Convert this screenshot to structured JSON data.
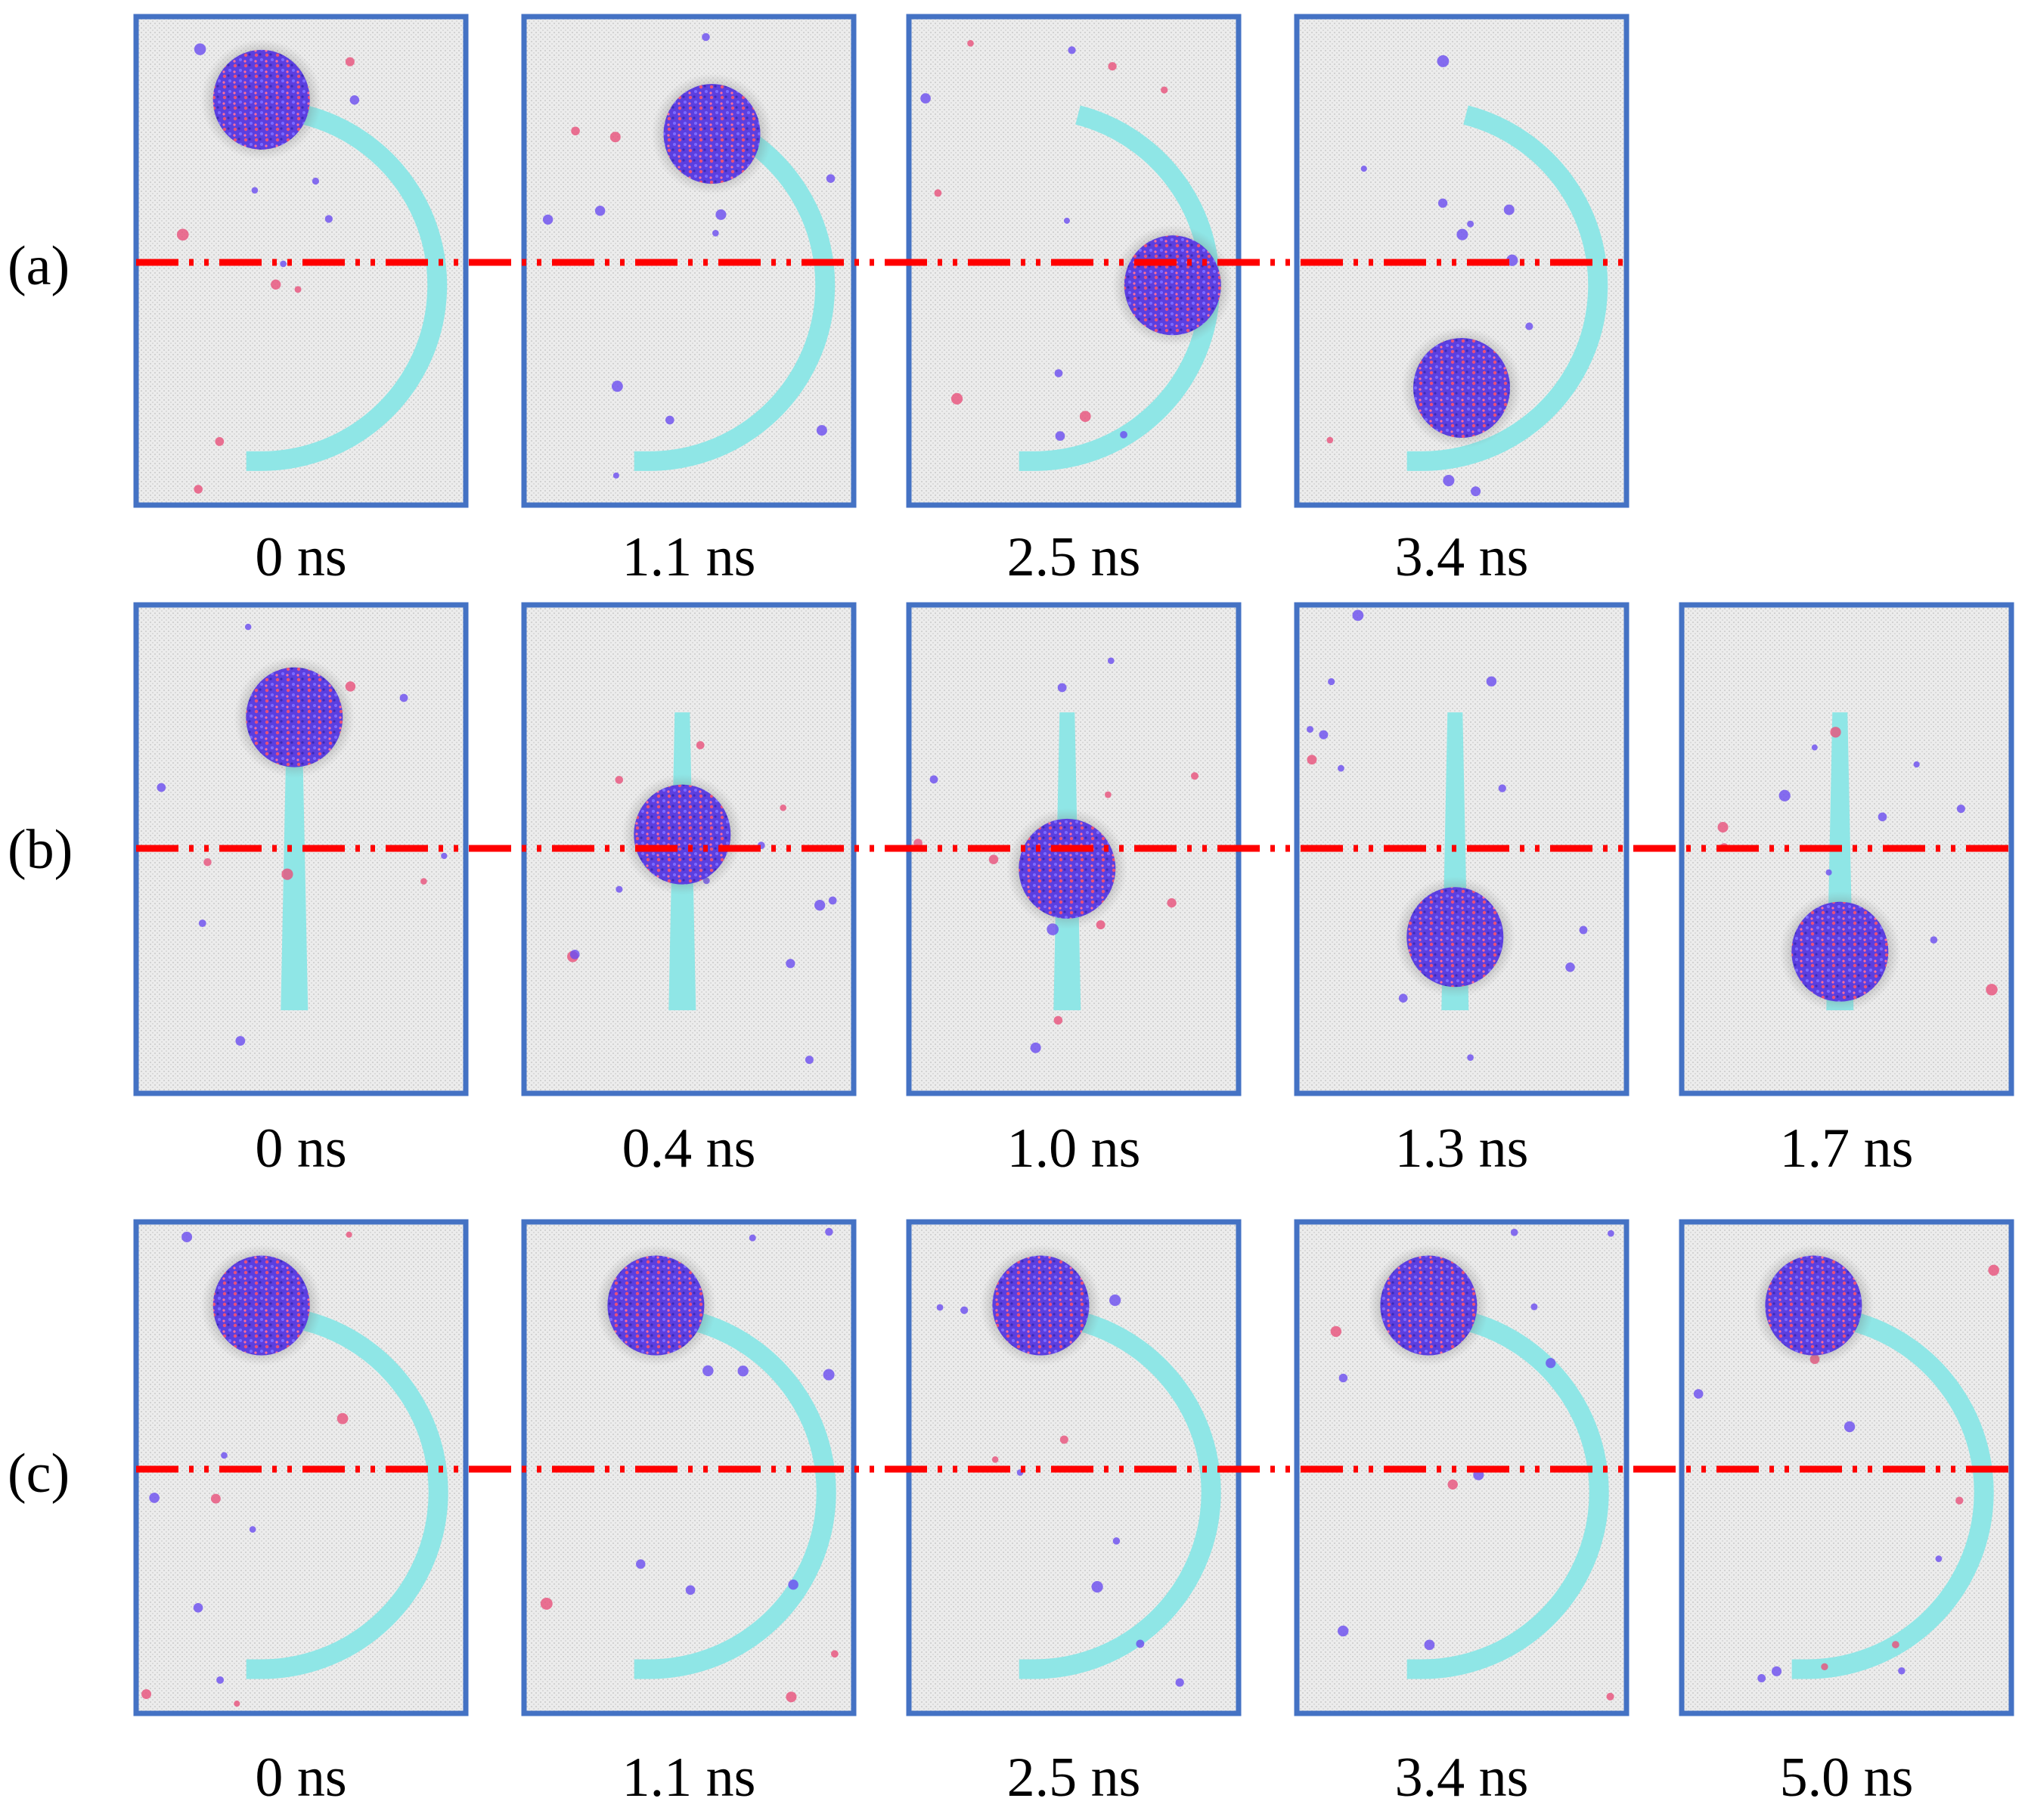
{
  "figure": {
    "rows": [
      {
        "label": "(a)",
        "guide": "arc",
        "times": [
          "0 ns",
          "1.1 ns",
          "2.5 ns",
          "3.4 ns"
        ]
      },
      {
        "label": "(b)",
        "guide": "straight",
        "times": [
          "0 ns",
          "0.4 ns",
          "1.0 ns",
          "1.3 ns",
          "1.7 ns"
        ]
      },
      {
        "label": "(c)",
        "guide": "arc",
        "times": [
          "0 ns",
          "1.1 ns",
          "2.5 ns",
          "3.4 ns",
          "5.0 ns"
        ]
      }
    ],
    "colors": {
      "frame_border": "#4472c4",
      "dash_line": "#ff0000",
      "guide_track": "#8fe6e6",
      "particle": "#6a4cf0",
      "particle_highlight": "#e8507a",
      "background": "#e9e9e9"
    }
  }
}
